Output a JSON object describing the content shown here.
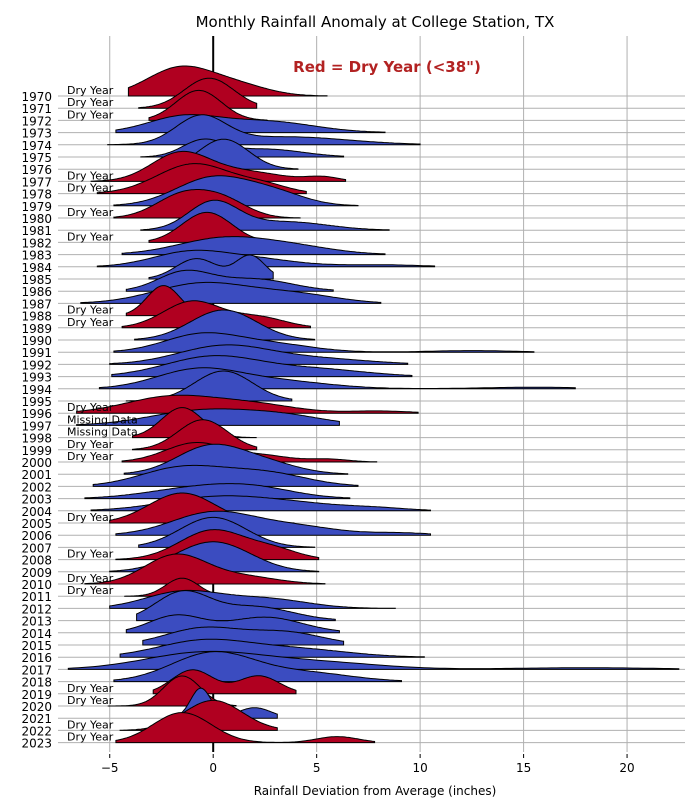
{
  "chart_data": {
    "type": "ridgeline",
    "title": "Monthly Rainfall Anomaly at College Station, TX",
    "xlabel": "Rainfall Deviation from Average (inches)",
    "xticks": [
      -5,
      0,
      5,
      10,
      15,
      20
    ],
    "xlim": [
      -7.5,
      22.8
    ],
    "legend_text": "Red = Dry Year (<38\")",
    "colors": {
      "dry": "#b00020",
      "wet": "#3b4cc0",
      "legend": "#b22222"
    },
    "grid": "vertical and horizontal",
    "years": [
      {
        "year": "1970",
        "label": "Dry Year",
        "dry": true,
        "range": [
          -4.1,
          5.5
        ],
        "peaks": [
          [
            -1.6,
            1.0,
            1.6
          ],
          [
            1.2,
            0.35,
            1.5
          ]
        ]
      },
      {
        "year": "1971",
        "label": "Dry Year",
        "dry": true,
        "range": [
          -3.6,
          2.1
        ],
        "peaks": [
          [
            -0.2,
            1.0,
            1.2
          ]
        ]
      },
      {
        "year": "1972",
        "label": "Dry Year",
        "dry": true,
        "range": [
          -3.1,
          2.6
        ],
        "peaks": [
          [
            -0.7,
            1.0,
            1.1
          ]
        ]
      },
      {
        "year": "1973",
        "label": "",
        "dry": false,
        "range": [
          -4.7,
          8.3
        ],
        "peaks": [
          [
            -1.5,
            0.6,
            1.7
          ],
          [
            2.5,
            0.45,
            2.3
          ]
        ]
      },
      {
        "year": "1974",
        "label": "",
        "dry": false,
        "range": [
          -5.1,
          10.0
        ],
        "peaks": [
          [
            -0.6,
            1.0,
            1.2
          ],
          [
            3.5,
            0.3,
            3.0
          ]
        ]
      },
      {
        "year": "1975",
        "label": "",
        "dry": false,
        "range": [
          -3.5,
          6.3
        ],
        "peaks": [
          [
            -0.5,
            0.6,
            1.0
          ],
          [
            2.5,
            0.3,
            1.8
          ]
        ]
      },
      {
        "year": "1976",
        "label": "",
        "dry": false,
        "range": [
          -2.0,
          4.1
        ],
        "peaks": [
          [
            0.5,
            1.0,
            1.2
          ]
        ]
      },
      {
        "year": "1977",
        "label": "Dry Year",
        "dry": true,
        "range": [
          -5.9,
          6.4
        ],
        "peaks": [
          [
            -1.6,
            1.0,
            1.4
          ],
          [
            1.5,
            0.35,
            1.8
          ],
          [
            5.3,
            0.15,
            0.8
          ]
        ]
      },
      {
        "year": "1978",
        "label": "Dry Year",
        "dry": true,
        "range": [
          -5.6,
          4.5
        ],
        "peaks": [
          [
            -0.9,
            1.0,
            1.8
          ],
          [
            2.5,
            0.25,
            1.2
          ]
        ]
      },
      {
        "year": "1979",
        "label": "",
        "dry": false,
        "range": [
          -4.8,
          7.0
        ],
        "peaks": [
          [
            0.0,
            1.0,
            1.8
          ],
          [
            3.0,
            0.4,
            1.5
          ]
        ]
      },
      {
        "year": "1980",
        "label": "Dry Year",
        "dry": true,
        "range": [
          -4.8,
          4.2
        ],
        "peaks": [
          [
            -1.5,
            0.95,
            1.3
          ],
          [
            0.5,
            0.7,
            1.2
          ]
        ]
      },
      {
        "year": "1981",
        "label": "",
        "dry": false,
        "range": [
          -3.5,
          8.5
        ],
        "peaks": [
          [
            0.0,
            1.0,
            1.2
          ],
          [
            3.5,
            0.3,
            2.0
          ]
        ]
      },
      {
        "year": "1982",
        "label": "Dry Year",
        "dry": true,
        "range": [
          -3.1,
          2.9
        ],
        "peaks": [
          [
            -0.3,
            1.0,
            1.2
          ]
        ]
      },
      {
        "year": "1983",
        "label": "",
        "dry": false,
        "range": [
          -4.4,
          8.3
        ],
        "peaks": [
          [
            0.5,
            0.6,
            2.2
          ],
          [
            4.0,
            0.25,
            2.0
          ]
        ]
      },
      {
        "year": "1984",
        "label": "",
        "dry": false,
        "range": [
          -5.6,
          10.7
        ],
        "peaks": [
          [
            -1.2,
            0.55,
            1.8
          ],
          [
            2.0,
            0.3,
            2.0
          ],
          [
            8.0,
            0.08,
            2.0
          ]
        ]
      },
      {
        "year": "1985",
        "label": "",
        "dry": false,
        "range": [
          -3.1,
          2.9
        ],
        "peaks": [
          [
            -0.8,
            0.7,
            1.0
          ],
          [
            1.8,
            0.8,
            0.7
          ]
        ]
      },
      {
        "year": "1986",
        "label": "",
        "dry": false,
        "range": [
          -4.2,
          5.8
        ],
        "peaks": [
          [
            -1.4,
            0.7,
            1.3
          ],
          [
            2.0,
            0.45,
            1.8
          ]
        ]
      },
      {
        "year": "1987",
        "label": "",
        "dry": false,
        "range": [
          -6.4,
          8.1
        ],
        "peaks": [
          [
            -0.5,
            0.7,
            2.3
          ],
          [
            4.0,
            0.3,
            2.0
          ]
        ]
      },
      {
        "year": "1988",
        "label": "Dry Year",
        "dry": true,
        "range": [
          -4.2,
          0.4
        ],
        "peaks": [
          [
            -2.4,
            1.0,
            0.8
          ]
        ]
      },
      {
        "year": "1989",
        "label": "Dry Year",
        "dry": true,
        "range": [
          -4.4,
          4.7
        ],
        "peaks": [
          [
            -1.0,
            0.9,
            1.4
          ],
          [
            2.2,
            0.35,
            1.3
          ]
        ]
      },
      {
        "year": "1990",
        "label": "",
        "dry": false,
        "range": [
          -3.8,
          4.9
        ],
        "peaks": [
          [
            0.5,
            1.0,
            1.6
          ]
        ]
      },
      {
        "year": "1991",
        "label": "",
        "dry": false,
        "range": [
          -4.8,
          15.5
        ],
        "peaks": [
          [
            -0.6,
            0.65,
            1.8
          ],
          [
            2.8,
            0.3,
            2.0
          ],
          [
            12.5,
            0.06,
            2.0
          ]
        ]
      },
      {
        "year": "1992",
        "label": "",
        "dry": false,
        "range": [
          -5.0,
          9.4
        ],
        "peaks": [
          [
            0.5,
            0.65,
            2.2
          ],
          [
            5.0,
            0.2,
            2.5
          ]
        ]
      },
      {
        "year": "1993",
        "label": "",
        "dry": false,
        "range": [
          -4.9,
          9.6
        ],
        "peaks": [
          [
            0.0,
            0.7,
            2.3
          ],
          [
            5.0,
            0.25,
            2.4
          ]
        ]
      },
      {
        "year": "1994",
        "label": "",
        "dry": false,
        "range": [
          -5.5,
          17.5
        ],
        "peaks": [
          [
            -0.8,
            0.7,
            2.0
          ],
          [
            3.0,
            0.3,
            2.5
          ],
          [
            15.5,
            0.06,
            2.5
          ]
        ]
      },
      {
        "year": "1995",
        "label": "",
        "dry": false,
        "range": [
          -4.2,
          3.8
        ],
        "peaks": [
          [
            0.5,
            1.0,
            1.4
          ]
        ]
      },
      {
        "year": "1996",
        "label": "Dry Year",
        "dry": true,
        "range": [
          -6.6,
          9.9
        ],
        "peaks": [
          [
            -2.0,
            0.6,
            2.2
          ],
          [
            2.0,
            0.3,
            2.0
          ],
          [
            8.0,
            0.08,
            1.5
          ]
        ]
      },
      {
        "year": "1997",
        "label": "Missing Data",
        "dry": false,
        "range": [
          -6.6,
          6.1
        ],
        "peaks": [
          [
            -0.5,
            0.55,
            2.5
          ],
          [
            3.5,
            0.3,
            2.0
          ]
        ]
      },
      {
        "year": "1998",
        "label": "Missing Data",
        "dry": true,
        "range": [
          -3.9,
          2.1
        ],
        "peaks": [
          [
            -1.5,
            1.0,
            1.0
          ]
        ]
      },
      {
        "year": "1999",
        "label": "Dry Year",
        "dry": true,
        "range": [
          -3.9,
          2.1
        ],
        "peaks": [
          [
            -0.5,
            1.0,
            1.2
          ]
        ]
      },
      {
        "year": "2000",
        "label": "Dry Year",
        "dry": true,
        "range": [
          -4.4,
          7.9
        ],
        "peaks": [
          [
            -0.8,
            0.65,
            1.5
          ],
          [
            2.5,
            0.2,
            1.2
          ],
          [
            5.5,
            0.1,
            1.0
          ]
        ]
      },
      {
        "year": "2001",
        "label": "",
        "dry": false,
        "range": [
          -4.3,
          6.5
        ],
        "peaks": [
          [
            -0.2,
            1.0,
            1.6
          ],
          [
            2.5,
            0.4,
            1.6
          ]
        ]
      },
      {
        "year": "2002",
        "label": "",
        "dry": false,
        "range": [
          -5.8,
          7.0
        ],
        "peaks": [
          [
            -1.5,
            0.7,
            2.0
          ],
          [
            2.5,
            0.5,
            2.0
          ]
        ]
      },
      {
        "year": "2003",
        "label": "",
        "dry": false,
        "range": [
          -6.2,
          6.6
        ],
        "peaks": [
          [
            -1.0,
            0.5,
            2.3
          ],
          [
            2.0,
            0.5,
            2.0
          ]
        ]
      },
      {
        "year": "2004",
        "label": "",
        "dry": false,
        "range": [
          -5.9,
          10.5
        ],
        "peaks": [
          [
            0.0,
            0.5,
            2.5
          ],
          [
            4.0,
            0.25,
            2.5
          ],
          [
            8.0,
            0.08,
            1.5
          ]
        ]
      },
      {
        "year": "2005",
        "label": "Dry Year",
        "dry": true,
        "range": [
          -5.0,
          3.9
        ],
        "peaks": [
          [
            -1.5,
            1.0,
            1.6
          ]
        ]
      },
      {
        "year": "2006",
        "label": "",
        "dry": false,
        "range": [
          -4.7,
          10.5
        ],
        "peaks": [
          [
            0.0,
            0.8,
            2.0
          ],
          [
            4.0,
            0.3,
            2.0
          ],
          [
            9.0,
            0.08,
            1.5
          ]
        ]
      },
      {
        "year": "2007",
        "label": "",
        "dry": false,
        "range": [
          -3.6,
          4.9
        ],
        "peaks": [
          [
            0.0,
            1.0,
            1.6
          ]
        ]
      },
      {
        "year": "2008",
        "label": "Dry Year",
        "dry": true,
        "range": [
          -4.7,
          5.1
        ],
        "peaks": [
          [
            0.0,
            1.0,
            1.6
          ],
          [
            3.0,
            0.3,
            1.2
          ]
        ]
      },
      {
        "year": "2009",
        "label": "",
        "dry": false,
        "range": [
          -5.0,
          5.1
        ],
        "peaks": [
          [
            0.0,
            1.0,
            1.8
          ]
        ]
      },
      {
        "year": "2010",
        "label": "Dry Year",
        "dry": true,
        "range": [
          -6.2,
          5.4
        ],
        "peaks": [
          [
            -1.8,
            1.0,
            1.5
          ],
          [
            1.5,
            0.25,
            1.6
          ]
        ]
      },
      {
        "year": "2011",
        "label": "Dry Year",
        "dry": true,
        "range": [
          -4.3,
          0.7
        ],
        "peaks": [
          [
            -1.5,
            0.6,
            0.8
          ]
        ]
      },
      {
        "year": "2012",
        "label": "",
        "dry": false,
        "range": [
          -5.0,
          8.8
        ],
        "peaks": [
          [
            -1.5,
            0.6,
            1.8
          ],
          [
            2.5,
            0.35,
            2.0
          ]
        ]
      },
      {
        "year": "2013",
        "label": "",
        "dry": false,
        "range": [
          -3.7,
          5.9
        ],
        "peaks": [
          [
            -1.5,
            1.0,
            1.3
          ],
          [
            2.0,
            0.5,
            1.8
          ]
        ]
      },
      {
        "year": "2014",
        "label": "",
        "dry": false,
        "range": [
          -4.2,
          6.1
        ],
        "peaks": [
          [
            -1.8,
            0.6,
            1.3
          ],
          [
            2.5,
            0.55,
            1.8
          ]
        ]
      },
      {
        "year": "2015",
        "label": "",
        "dry": false,
        "range": [
          -3.4,
          6.3
        ],
        "peaks": [
          [
            -0.5,
            0.6,
            1.8
          ],
          [
            3.5,
            0.45,
            1.8
          ]
        ]
      },
      {
        "year": "2016",
        "label": "",
        "dry": false,
        "range": [
          -4.5,
          10.2
        ],
        "peaks": [
          [
            -0.5,
            0.6,
            2.2
          ],
          [
            4.0,
            0.3,
            2.5
          ]
        ]
      },
      {
        "year": "2017",
        "label": "",
        "dry": false,
        "range": [
          -7.0,
          22.5
        ],
        "peaks": [
          [
            -0.5,
            0.6,
            2.8
          ],
          [
            5.0,
            0.25,
            3.0
          ],
          [
            18.0,
            0.06,
            3.5
          ]
        ]
      },
      {
        "year": "2018",
        "label": "",
        "dry": false,
        "range": [
          -4.8,
          9.1
        ],
        "peaks": [
          [
            0.0,
            1.0,
            2.0
          ],
          [
            4.5,
            0.3,
            2.2
          ]
        ]
      },
      {
        "year": "2019",
        "label": "Dry Year",
        "dry": true,
        "range": [
          -2.9,
          4.0
        ],
        "peaks": [
          [
            -1.0,
            0.8,
            1.0
          ],
          [
            2.2,
            0.6,
            1.0
          ]
        ]
      },
      {
        "year": "2020",
        "label": "Dry Year",
        "dry": true,
        "range": [
          -5.1,
          1.1
        ],
        "peaks": [
          [
            -1.5,
            1.0,
            0.9
          ]
        ]
      },
      {
        "year": "2021",
        "label": "",
        "dry": false,
        "range": [
          -2.1,
          3.1
        ],
        "peaks": [
          [
            -0.6,
            1.0,
            0.5
          ],
          [
            2.0,
            0.35,
            0.8
          ]
        ]
      },
      {
        "year": "2022",
        "label": "Dry Year",
        "dry": true,
        "range": [
          -4.5,
          3.1
        ],
        "peaks": [
          [
            0.0,
            1.0,
            1.4
          ]
        ]
      },
      {
        "year": "2023",
        "label": "Dry Year",
        "dry": true,
        "range": [
          -4.7,
          7.8
        ],
        "peaks": [
          [
            -1.5,
            1.0,
            1.4
          ],
          [
            6.0,
            0.2,
            1.0
          ]
        ]
      }
    ]
  }
}
